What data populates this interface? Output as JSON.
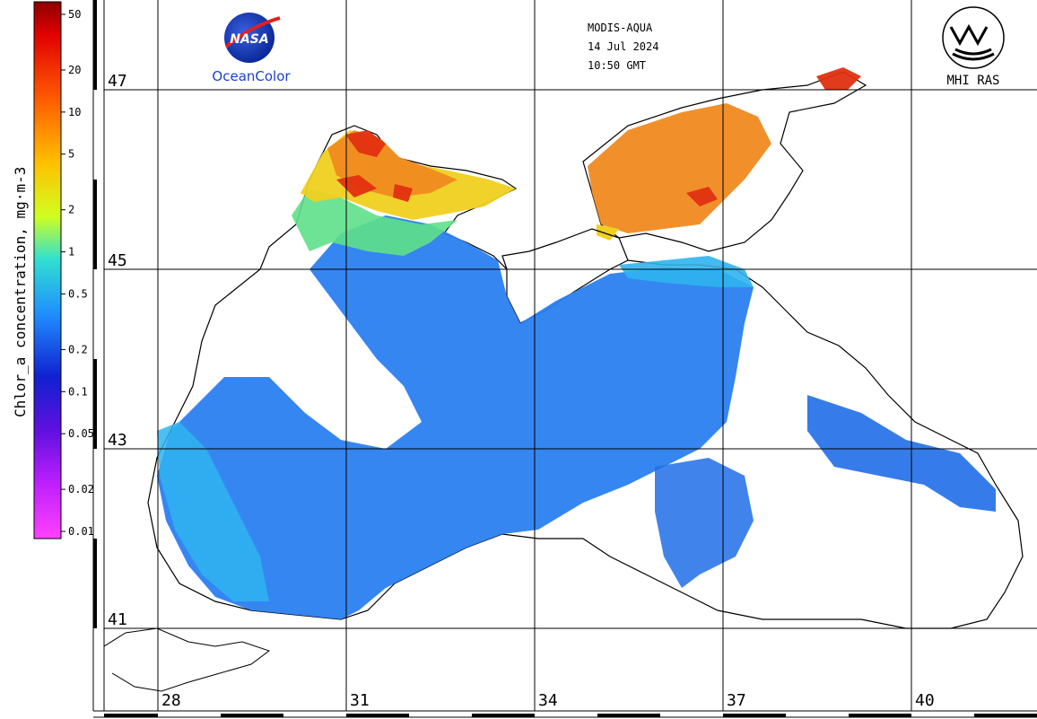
{
  "header": {
    "sensor": "MODIS-AQUA",
    "date": "14 Jul 2024",
    "time": "10:50 GMT"
  },
  "logos": {
    "nasa_text": "NASA",
    "oceancolor_text": "OceanColor",
    "mhi_text": "MHI RAS"
  },
  "colorbar": {
    "title": "Chlor_a concentration, mg·m-3",
    "ticks": [
      "50",
      "20",
      "10",
      "5",
      "2",
      "1",
      "0.5",
      "0.2",
      "0.1",
      "0.05",
      "0.02",
      "0.01"
    ],
    "tick_values": [
      50,
      20,
      10,
      5,
      2,
      1,
      0.5,
      0.2,
      0.1,
      0.05,
      0.02,
      0.01
    ],
    "range": [
      0.01,
      50
    ],
    "scale": "log",
    "colors": [
      "#8b0000",
      "#ff0000",
      "#ff8000",
      "#ffd000",
      "#c0ff30",
      "#30e0e0",
      "#2080ff",
      "#1030d0",
      "#6010e0",
      "#b020ff",
      "#ff30ff"
    ]
  },
  "map": {
    "lat_labels": [
      "47",
      "45",
      "43",
      "41"
    ],
    "lat_values": [
      47,
      45,
      43,
      41
    ],
    "lon_labels": [
      "28",
      "31",
      "34",
      "37",
      "40"
    ],
    "lon_values": [
      28,
      31,
      34,
      37,
      40
    ],
    "colors": {
      "water_low": "#2a7ff0",
      "water_mid": "#1f6ee8",
      "water_cyan": "#2fb4f0",
      "shelf_green": "#5fe08a",
      "high_yellow": "#f0d020",
      "high_orange": "#f08a20",
      "high_red": "#e03010",
      "land": "#ffffff",
      "coast": "#000000"
    }
  }
}
